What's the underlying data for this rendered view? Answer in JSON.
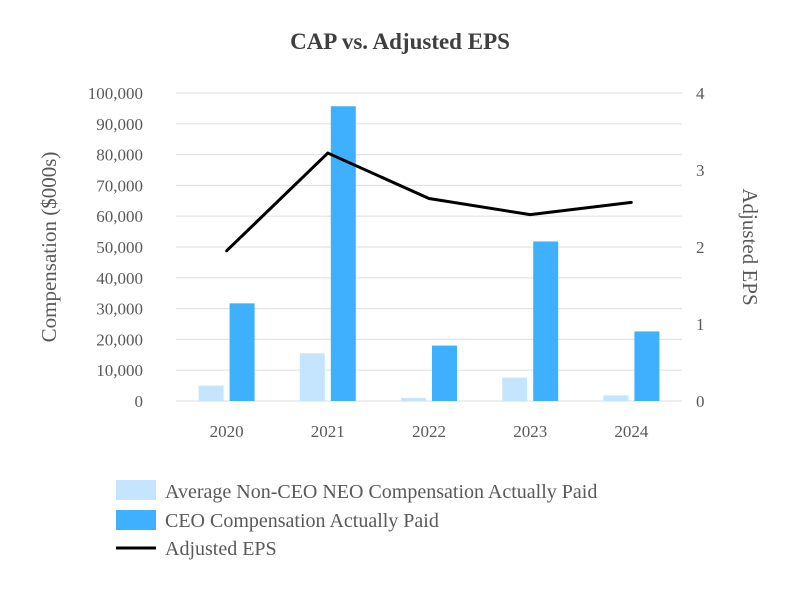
{
  "chart_data": {
    "type": "bar",
    "title": "CAP vs. Adjusted EPS",
    "categories": [
      "2020",
      "2021",
      "2022",
      "2023",
      "2024"
    ],
    "ylabel_left": "Compensation ($000s)",
    "ylabel_right": "Adjusted EPS",
    "ylim_left": [
      0,
      100000
    ],
    "ylim_right": [
      0,
      4
    ],
    "yticks_left": [
      "0",
      "10,000",
      "20,000",
      "30,000",
      "40,000",
      "50,000",
      "60,000",
      "70,000",
      "80,000",
      "90,000",
      "100,000"
    ],
    "yticks_right": [
      "0",
      "1",
      "2",
      "3",
      "4"
    ],
    "grid": true,
    "legend_position": "bottom",
    "series": [
      {
        "name": "Average Non-CEO NEO Compensation Actually Paid",
        "kind": "bar",
        "axis": "left",
        "color": "#c5e4fd",
        "values": [
          5000,
          15500,
          1000,
          7600,
          1800
        ]
      },
      {
        "name": "CEO Compensation Actually Paid",
        "kind": "bar",
        "axis": "left",
        "color": "#3fb0fe",
        "values": [
          31700,
          95700,
          18000,
          51800,
          22600
        ]
      },
      {
        "name": "Adjusted EPS",
        "kind": "line",
        "axis": "right",
        "color": "#000000",
        "values": [
          1.95,
          3.22,
          2.63,
          2.42,
          2.58
        ]
      }
    ]
  }
}
